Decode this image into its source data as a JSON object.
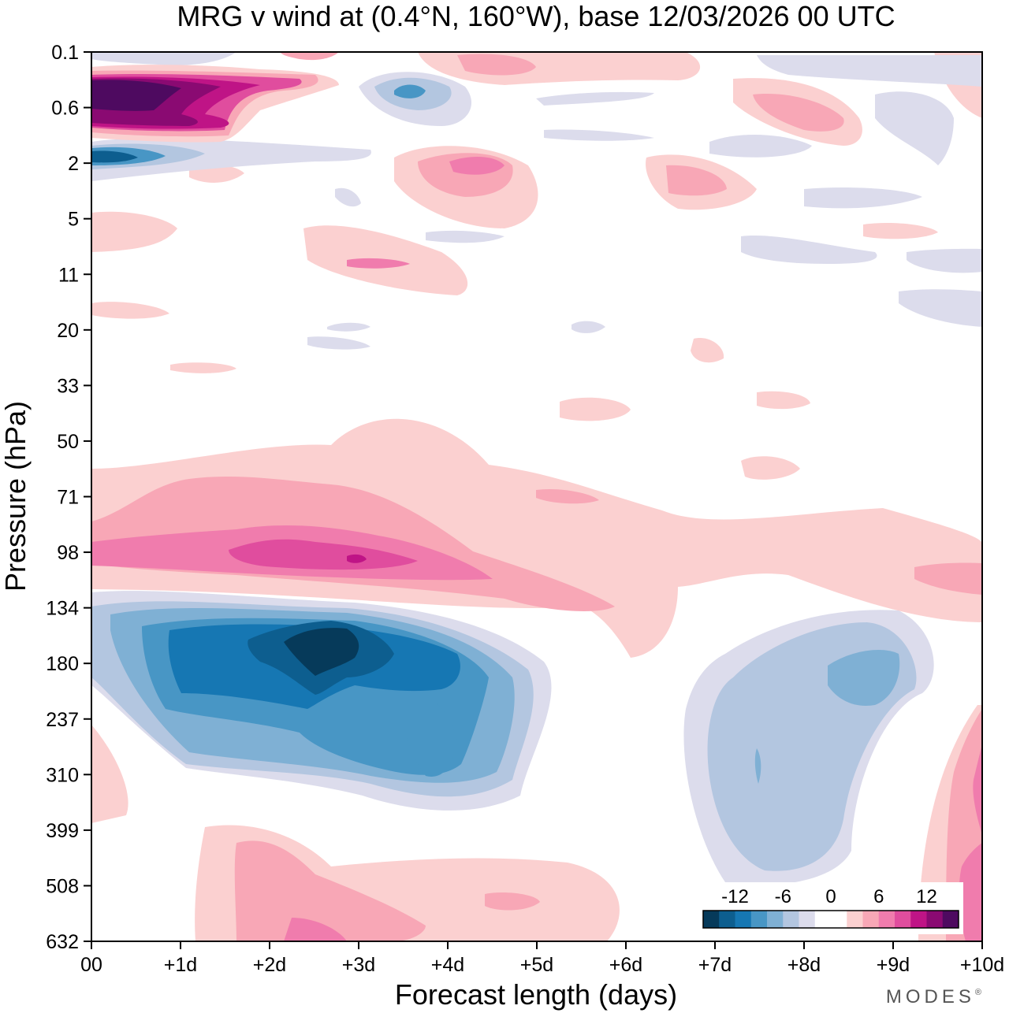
{
  "chart_data": {
    "type": "heatmap",
    "title": "MRG v wind at (0.4°N, 160°W),  base 12/03/2026  00 UTC",
    "xlabel": "Forecast length (days)",
    "ylabel": "Pressure (hPa)",
    "x_tick_labels": [
      "00",
      "+1d",
      "+2d",
      "+3d",
      "+4d",
      "+5d",
      "+6d",
      "+7d",
      "+8d",
      "+9d",
      "+10d"
    ],
    "xlim": [
      0,
      10
    ],
    "y_tick_labels": [
      "0.1",
      "0.6",
      "2",
      "5",
      "11",
      "20",
      "33",
      "50",
      "71",
      "98",
      "134",
      "180",
      "237",
      "310",
      "399",
      "508",
      "632"
    ],
    "colorbar": {
      "tick_labels": [
        "-12",
        "-6",
        "0",
        "6",
        "12"
      ],
      "colors": [
        "#063a5a",
        "#0d5e8f",
        "#1677b3",
        "#4896c5",
        "#7fb0d4",
        "#b3c6e0",
        "#dcdcec",
        "#ffffff",
        "#ffffff",
        "#fbd0d0",
        "#f8a7b6",
        "#f07cad",
        "#e04d9e",
        "#bf1486",
        "#8a0a72",
        "#4e0a60"
      ]
    },
    "features": [
      {
        "name": "upper-positive-core",
        "days": [
          0,
          1.7
        ],
        "pressure_hPa": [
          0.3,
          1.0
        ],
        "peak": 14
      },
      {
        "name": "upper-negative-core",
        "days": [
          0,
          1.2
        ],
        "pressure_hPa": [
          1.5,
          3
        ],
        "peak": -10
      },
      {
        "name": "tropopause-positive-band",
        "days": [
          0,
          6.5
        ],
        "pressure_hPa": [
          60,
          130
        ],
        "peak": 11
      },
      {
        "name": "upper-troposphere-negative-core",
        "days": [
          0,
          5
        ],
        "pressure_hPa": [
          130,
          420
        ],
        "peak": -13
      },
      {
        "name": "late-negative-region",
        "days": [
          6.7,
          9.4
        ],
        "pressure_hPa": [
          150,
          520
        ],
        "peak": -6
      },
      {
        "name": "lower-positive-region",
        "days": [
          1.2,
          6
        ],
        "pressure_hPa": [
          400,
          632
        ],
        "peak": 6
      },
      {
        "name": "late-positive-edge",
        "days": [
          9.3,
          10
        ],
        "pressure_hPa": [
          230,
          632
        ],
        "peak": 9
      }
    ]
  },
  "brand": {
    "text": "MODES",
    "mark": "®"
  }
}
